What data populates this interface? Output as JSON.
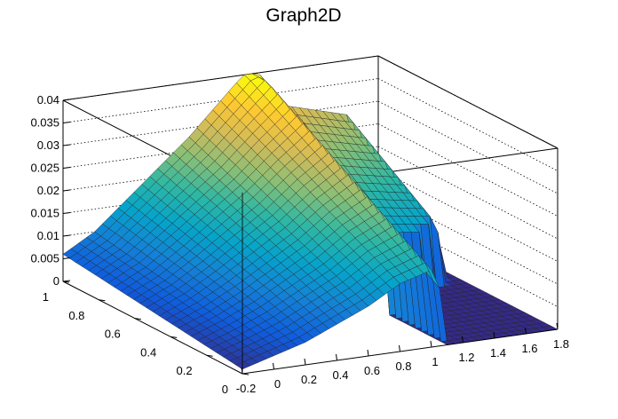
{
  "chart_data": {
    "type": "surface3d",
    "title": "Graph2D",
    "xlabel": "",
    "ylabel": "",
    "zlabel": "",
    "x_range": [
      -0.2,
      1.8
    ],
    "y_range": [
      0,
      1
    ],
    "z_range": [
      0,
      0.04
    ],
    "x_ticks": [
      "-0.2",
      "0",
      "0.2",
      "0.4",
      "0.6",
      "0.8",
      "1",
      "1.2",
      "1.4",
      "1.6",
      "1.8"
    ],
    "y_ticks": [
      "0",
      "0.2",
      "0.4",
      "0.6",
      "0.8",
      "1"
    ],
    "z_ticks": [
      "0",
      "0.005",
      "0.01",
      "0.015",
      "0.02",
      "0.025",
      "0.03",
      "0.035",
      "0.04"
    ],
    "z_gridlines": "dotted",
    "colormap": [
      "#352a87",
      "#0f5cdd",
      "#1481d6",
      "#06a4ca",
      "#2eb7a4",
      "#87bf77",
      "#d1bb59",
      "#fec832",
      "#f9fb0e"
    ],
    "surface_profile": {
      "x": [
        -0.2,
        0.0,
        0.2,
        0.4,
        0.6,
        0.8,
        1.0,
        1.2,
        1.4,
        1.6,
        1.8
      ],
      "z_at_y0": [
        0.001,
        0.003,
        0.005,
        0.008,
        0.011,
        0.015,
        0.017,
        0.0,
        0.0,
        0.0,
        0.0
      ],
      "z_at_y1": [
        0.006,
        0.01,
        0.016,
        0.022,
        0.028,
        0.035,
        0.042,
        0.032,
        0.03,
        0.028,
        0.0
      ]
    }
  }
}
